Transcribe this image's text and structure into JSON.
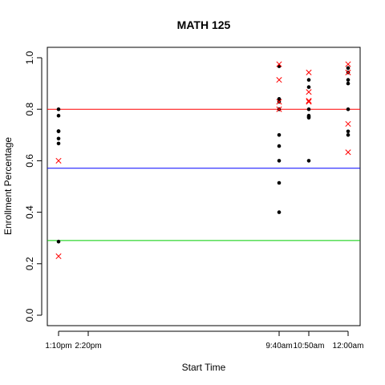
{
  "chart_data": {
    "type": "scatter",
    "title": "MATH 125",
    "xlabel": "Start Time",
    "ylabel": "Enrollment Percentage",
    "ylim": [
      0.0,
      1.0
    ],
    "y_ticks": [
      "0.0",
      "0.2",
      "0.4",
      "0.6",
      "0.8",
      "1.0"
    ],
    "x_categories": [
      "1:10pm",
      "2:20pm",
      "9:40am",
      "10:50am",
      "12:00am"
    ],
    "grid": false,
    "legend": "none",
    "series": [
      {
        "marker": "dot",
        "color": "#000000",
        "points": [
          {
            "x": "1:10pm",
            "y": 0.8
          },
          {
            "x": "1:10pm",
            "y": 0.775
          },
          {
            "x": "1:10pm",
            "y": 0.715
          },
          {
            "x": "1:10pm",
            "y": 0.714
          },
          {
            "x": "1:10pm",
            "y": 0.686
          },
          {
            "x": "1:10pm",
            "y": 0.667
          },
          {
            "x": "1:10pm",
            "y": 0.286
          },
          {
            "x": "9:40am",
            "y": 0.967
          },
          {
            "x": "9:40am",
            "y": 0.84
          },
          {
            "x": "9:40am",
            "y": 0.829
          },
          {
            "x": "9:40am",
            "y": 0.8
          },
          {
            "x": "9:40am",
            "y": 0.7
          },
          {
            "x": "9:40am",
            "y": 0.657
          },
          {
            "x": "9:40am",
            "y": 0.6
          },
          {
            "x": "9:40am",
            "y": 0.514
          },
          {
            "x": "9:40am",
            "y": 0.4
          },
          {
            "x": "10:50am",
            "y": 0.914
          },
          {
            "x": "10:50am",
            "y": 0.886
          },
          {
            "x": "10:50am",
            "y": 0.8
          },
          {
            "x": "10:50am",
            "y": 0.775
          },
          {
            "x": "10:50am",
            "y": 0.771
          },
          {
            "x": "10:50am",
            "y": 0.767
          },
          {
            "x": "10:50am",
            "y": 0.6
          },
          {
            "x": "12:00am",
            "y": 0.96
          },
          {
            "x": "12:00am",
            "y": 0.943
          },
          {
            "x": "12:00am",
            "y": 0.914
          },
          {
            "x": "12:00am",
            "y": 0.9
          },
          {
            "x": "12:00am",
            "y": 0.8
          },
          {
            "x": "12:00am",
            "y": 0.714
          },
          {
            "x": "12:00am",
            "y": 0.7
          }
        ]
      },
      {
        "marker": "cross",
        "color": "#ff0000",
        "points": [
          {
            "x": "1:10pm",
            "y": 0.6
          },
          {
            "x": "1:10pm",
            "y": 0.229
          },
          {
            "x": "9:40am",
            "y": 0.975
          },
          {
            "x": "9:40am",
            "y": 0.914
          },
          {
            "x": "9:40am",
            "y": 0.829
          },
          {
            "x": "9:40am",
            "y": 0.8
          },
          {
            "x": "10:50am",
            "y": 0.943
          },
          {
            "x": "10:50am",
            "y": 0.867
          },
          {
            "x": "10:50am",
            "y": 0.833
          },
          {
            "x": "10:50am",
            "y": 0.829
          },
          {
            "x": "12:00am",
            "y": 0.975
          },
          {
            "x": "12:00am",
            "y": 0.943
          },
          {
            "x": "12:00am",
            "y": 0.743
          },
          {
            "x": "12:00am",
            "y": 0.633
          }
        ]
      }
    ],
    "reference_lines": [
      {
        "y": 0.8,
        "color": "#ff0000"
      },
      {
        "y": 0.571,
        "color": "#0000ff"
      },
      {
        "y": 0.29,
        "color": "#00cc00"
      }
    ]
  }
}
